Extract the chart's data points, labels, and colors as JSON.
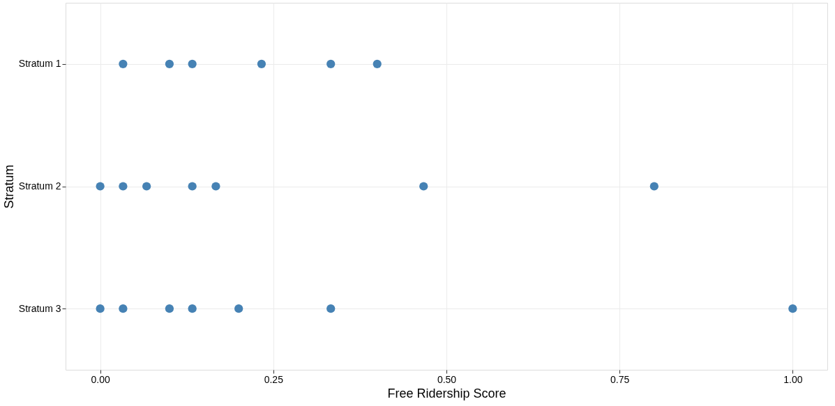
{
  "chart_data": {
    "type": "scatter",
    "orientation": "horizontal",
    "xlabel": "Free Ridership Score",
    "ylabel": "Stratum",
    "categories": [
      "Stratum 1",
      "Stratum 2",
      "Stratum 3"
    ],
    "series": [
      {
        "color": "#4682b4",
        "x": [
          "Stratum 1",
          "Stratum 1",
          "Stratum 1",
          "Stratum 1",
          "Stratum 1",
          "Stratum 1",
          "Stratum 2",
          "Stratum 2",
          "Stratum 2",
          "Stratum 2",
          "Stratum 2",
          "Stratum 2",
          "Stratum 2",
          "Stratum 3",
          "Stratum 3",
          "Stratum 3",
          "Stratum 3",
          "Stratum 3",
          "Stratum 3",
          "Stratum 3"
        ],
        "values": [
          0.033,
          0.1,
          0.133,
          0.233,
          0.333,
          0.4,
          0,
          0.033,
          0.067,
          0.133,
          0.167,
          0.467,
          0.8,
          0,
          0.033,
          0.1,
          0.133,
          0.2,
          0.333,
          1.0
        ]
      }
    ],
    "xlim": [
      -0.05,
      1.05
    ],
    "xticks": [
      {
        "value": 0,
        "label": "0.00"
      },
      {
        "value": 0.25,
        "label": "0.25"
      },
      {
        "value": 0.5,
        "label": "0.50"
      },
      {
        "value": 0.75,
        "label": "0.75"
      },
      {
        "value": 1,
        "label": "1.00"
      }
    ],
    "marker": "circle",
    "grid": true
  }
}
